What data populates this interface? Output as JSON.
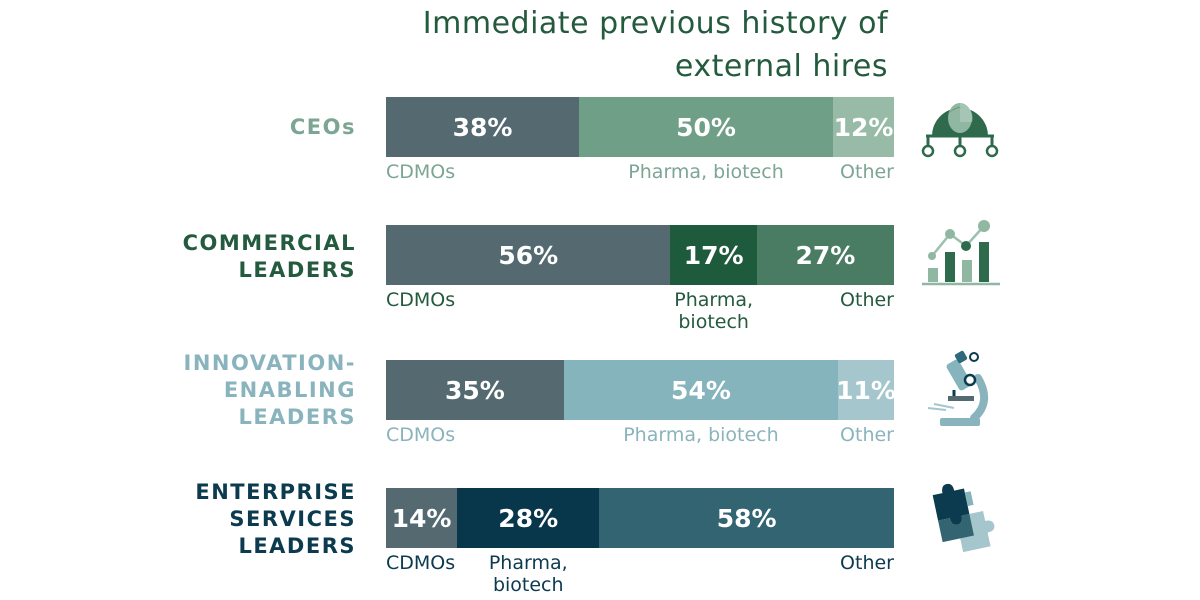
{
  "chart_data": {
    "type": "bar",
    "orientation": "horizontal",
    "stacked": true,
    "title": "Immediate previous history of external hires",
    "title_lines": [
      "Immediate previous history of",
      "external hires"
    ],
    "segment_labels": [
      "CDMOs",
      "Pharma, biotech",
      "Other"
    ],
    "categories": [
      "CEOs",
      "COMMERCIAL LEADERS",
      "INNOVATION-ENABLING LEADERS",
      "ENTERPRISE SERVICES LEADERS"
    ],
    "rows": [
      {
        "label_lines": [
          "CEOs"
        ],
        "label_color": "#7da594",
        "values": [
          38,
          50,
          12
        ],
        "value_labels": [
          "38%",
          "50%",
          "12%"
        ],
        "segment_colors": [
          "#546a70",
          "#6f9f86",
          "#97bba7"
        ],
        "cat_color": "#7da594",
        "cat_labels": [
          [
            "CDMOs"
          ],
          [
            "Pharma, biotech"
          ],
          [
            "Other"
          ]
        ],
        "icon": "network-person-icon"
      },
      {
        "label_lines": [
          "COMMERCIAL",
          "LEADERS"
        ],
        "label_color": "#245a3d",
        "values": [
          56,
          17,
          27
        ],
        "value_labels": [
          "56%",
          "17%",
          "27%"
        ],
        "segment_colors": [
          "#546a70",
          "#1e5a3c",
          "#4a7c63"
        ],
        "cat_color": "#245a3d",
        "cat_labels": [
          [
            "CDMOs"
          ],
          [
            "Pharma,",
            "biotech"
          ],
          [
            "Other"
          ]
        ],
        "icon": "growth-chart-icon"
      },
      {
        "label_lines": [
          "INNOVATION-",
          "ENABLING",
          "LEADERS"
        ],
        "label_color": "#8ab4bd",
        "values": [
          35,
          54,
          11
        ],
        "value_labels": [
          "35%",
          "54%",
          "11%"
        ],
        "segment_colors": [
          "#546a70",
          "#85b4bc",
          "#a4c6cc"
        ],
        "cat_color": "#8ab4bd",
        "cat_labels": [
          [
            "CDMOs"
          ],
          [
            "Pharma, biotech"
          ],
          [
            "Other"
          ]
        ],
        "icon": "microscope-icon"
      },
      {
        "label_lines": [
          "ENTERPRISE",
          "SERVICES",
          "LEADERS"
        ],
        "label_color": "#0c3a4e",
        "values": [
          14,
          28,
          58
        ],
        "value_labels": [
          "14%",
          "28%",
          "58%"
        ],
        "segment_colors": [
          "#546a70",
          "#08364a",
          "#336472"
        ],
        "cat_color": "#0c3a4e",
        "cat_labels": [
          [
            "CDMOs"
          ],
          [
            "Pharma,",
            "biotech"
          ],
          [
            "Other"
          ]
        ],
        "icon": "puzzle-icon"
      }
    ],
    "xlim": [
      0,
      100
    ],
    "grid": false,
    "legend": "none"
  }
}
